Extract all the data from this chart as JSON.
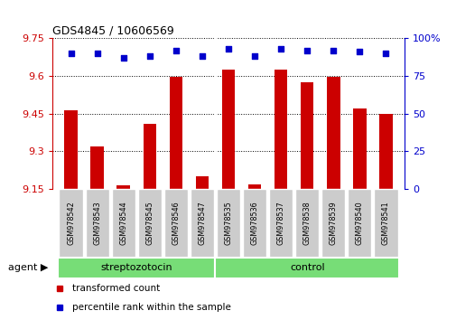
{
  "title": "GDS4845 / 10606569",
  "samples": [
    "GSM978542",
    "GSM978543",
    "GSM978544",
    "GSM978545",
    "GSM978546",
    "GSM978547",
    "GSM978535",
    "GSM978536",
    "GSM978537",
    "GSM978538",
    "GSM978539",
    "GSM978540",
    "GSM978541"
  ],
  "bar_values": [
    9.465,
    9.32,
    9.165,
    9.41,
    9.595,
    9.2,
    9.625,
    9.168,
    9.625,
    9.575,
    9.595,
    9.47,
    9.45
  ],
  "percentile_values": [
    90,
    90,
    87,
    88,
    92,
    88,
    93,
    88,
    93,
    92,
    92,
    91,
    90
  ],
  "groups": [
    {
      "label": "streptozotocin",
      "start": 0,
      "end": 6,
      "color": "#77DD77"
    },
    {
      "label": "control",
      "start": 6,
      "end": 13,
      "color": "#77DD77"
    }
  ],
  "group_split": 6,
  "n_samples": 13,
  "group_label": "agent",
  "ylim_left": [
    9.15,
    9.75
  ],
  "ylim_right": [
    0,
    100
  ],
  "yticks_left": [
    9.15,
    9.3,
    9.45,
    9.6,
    9.75
  ],
  "ytick_labels_left": [
    "9.15",
    "9.3",
    "9.45",
    "9.6",
    "9.75"
  ],
  "yticks_right": [
    0,
    25,
    50,
    75,
    100
  ],
  "ytick_labels_right": [
    "0",
    "25",
    "50",
    "75",
    "100%"
  ],
  "bar_color": "#CC0000",
  "dot_color": "#0000CC",
  "bar_width": 0.5,
  "cell_color": "#CCCCCC",
  "background_color": "#FFFFFF",
  "tick_color_left": "#CC0000",
  "tick_color_right": "#0000CC",
  "legend_items": [
    {
      "label": "transformed count",
      "color": "#CC0000"
    },
    {
      "label": "percentile rank within the sample",
      "color": "#0000CC"
    }
  ]
}
